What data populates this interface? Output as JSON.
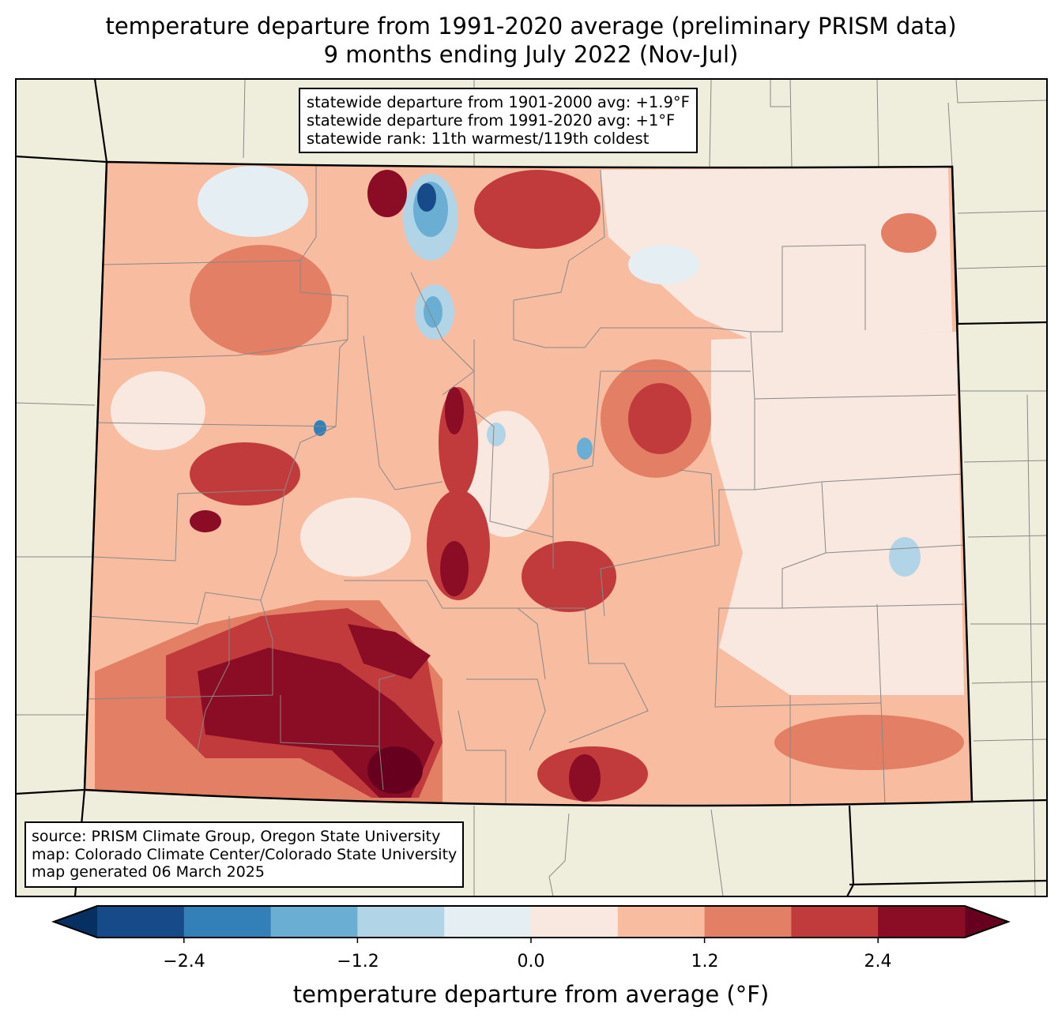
{
  "title": {
    "line1": "temperature departure from 1991-2020 average (preliminary PRISM data)",
    "line2": "9 months ending July 2022 (Nov-Jul)"
  },
  "stats": {
    "line1": "statewide departure from 1901-2000 avg: +1.9°F",
    "line2": "statewide departure from 1991-2020 avg: +1°F",
    "line3": "statewide rank: 11th warmest/119th coldest"
  },
  "source": {
    "line1": "source: PRISM Climate Group, Oregon State University",
    "line2": "map: Colorado Climate Center/Colorado State University",
    "line3": "map generated 06 March 2025"
  },
  "colorbar": {
    "label": "temperature departure from average (°F)",
    "ticks": [
      "−2.4",
      "−1.2",
      "0.0",
      "1.2",
      "2.4"
    ],
    "tick_values": [
      -2.4,
      -1.2,
      0.0,
      1.2,
      2.4
    ],
    "levels": [
      -3.0,
      -2.4,
      -1.8,
      -1.2,
      -0.6,
      0.0,
      0.6,
      1.2,
      1.8,
      2.4,
      3.0
    ],
    "under_color": "#053061",
    "over_color": "#67001f",
    "colors": [
      "#174a88",
      "#337fb8",
      "#6aaed3",
      "#b2d4e7",
      "#e5eef3",
      "#f9e8df",
      "#f8bca1",
      "#e27f65",
      "#c13b3c",
      "#8a0c25"
    ]
  },
  "colors": {
    "land": "#efeedc",
    "base_fill": "#f8bca1"
  }
}
